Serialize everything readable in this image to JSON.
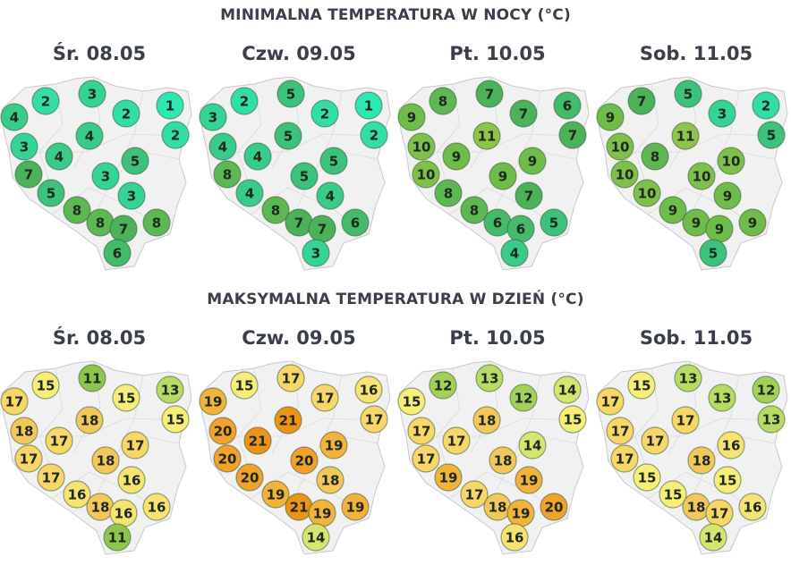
{
  "sections": [
    {
      "title": "MINIMALNA TEMPERATURA W NOCY (°C)",
      "kind": "min",
      "days": [
        {
          "label": "Śr. 08.05",
          "values": [
            4,
            2,
            3,
            2,
            1,
            2,
            3,
            4,
            4,
            5,
            7,
            3,
            5,
            3,
            8,
            8,
            7,
            8,
            6
          ]
        },
        {
          "label": "Czw. 09.05",
          "values": [
            3,
            2,
            5,
            2,
            1,
            2,
            4,
            4,
            5,
            5,
            8,
            5,
            4,
            4,
            8,
            7,
            7,
            6,
            3
          ]
        },
        {
          "label": "Pt. 10.05",
          "values": [
            9,
            8,
            7,
            7,
            6,
            7,
            10,
            9,
            11,
            9,
            10,
            9,
            8,
            7,
            8,
            6,
            6,
            5,
            4
          ]
        },
        {
          "label": "Sob. 11.05",
          "values": [
            9,
            7,
            5,
            3,
            2,
            5,
            10,
            8,
            11,
            10,
            10,
            10,
            10,
            9,
            9,
            9,
            9,
            9,
            5
          ]
        }
      ]
    },
    {
      "title": "MAKSYMALNA TEMPERATURA W DZIEŃ (°C)",
      "kind": "max",
      "days": [
        {
          "label": "Śr. 08.05",
          "values": [
            17,
            15,
            11,
            15,
            13,
            15,
            18,
            17,
            18,
            17,
            17,
            18,
            17,
            16,
            16,
            18,
            16,
            16,
            11
          ]
        },
        {
          "label": "Czw. 09.05",
          "values": [
            19,
            15,
            17,
            17,
            16,
            17,
            20,
            21,
            21,
            19,
            20,
            20,
            20,
            18,
            19,
            21,
            19,
            19,
            14
          ]
        },
        {
          "label": "Pt. 10.05",
          "values": [
            15,
            12,
            13,
            12,
            14,
            15,
            17,
            17,
            18,
            14,
            17,
            18,
            19,
            19,
            17,
            18,
            19,
            20,
            16
          ]
        },
        {
          "label": "Sob. 11.05",
          "values": [
            17,
            15,
            13,
            13,
            12,
            13,
            17,
            17,
            17,
            16,
            17,
            18,
            15,
            15,
            15,
            18,
            17,
            16,
            14
          ]
        }
      ]
    }
  ],
  "colors": {
    "map_fill": "#f1f1f1",
    "map_border": "#c9c9c9",
    "marker_border": "#3b5a3b",
    "text": "#3a3f4a"
  }
}
